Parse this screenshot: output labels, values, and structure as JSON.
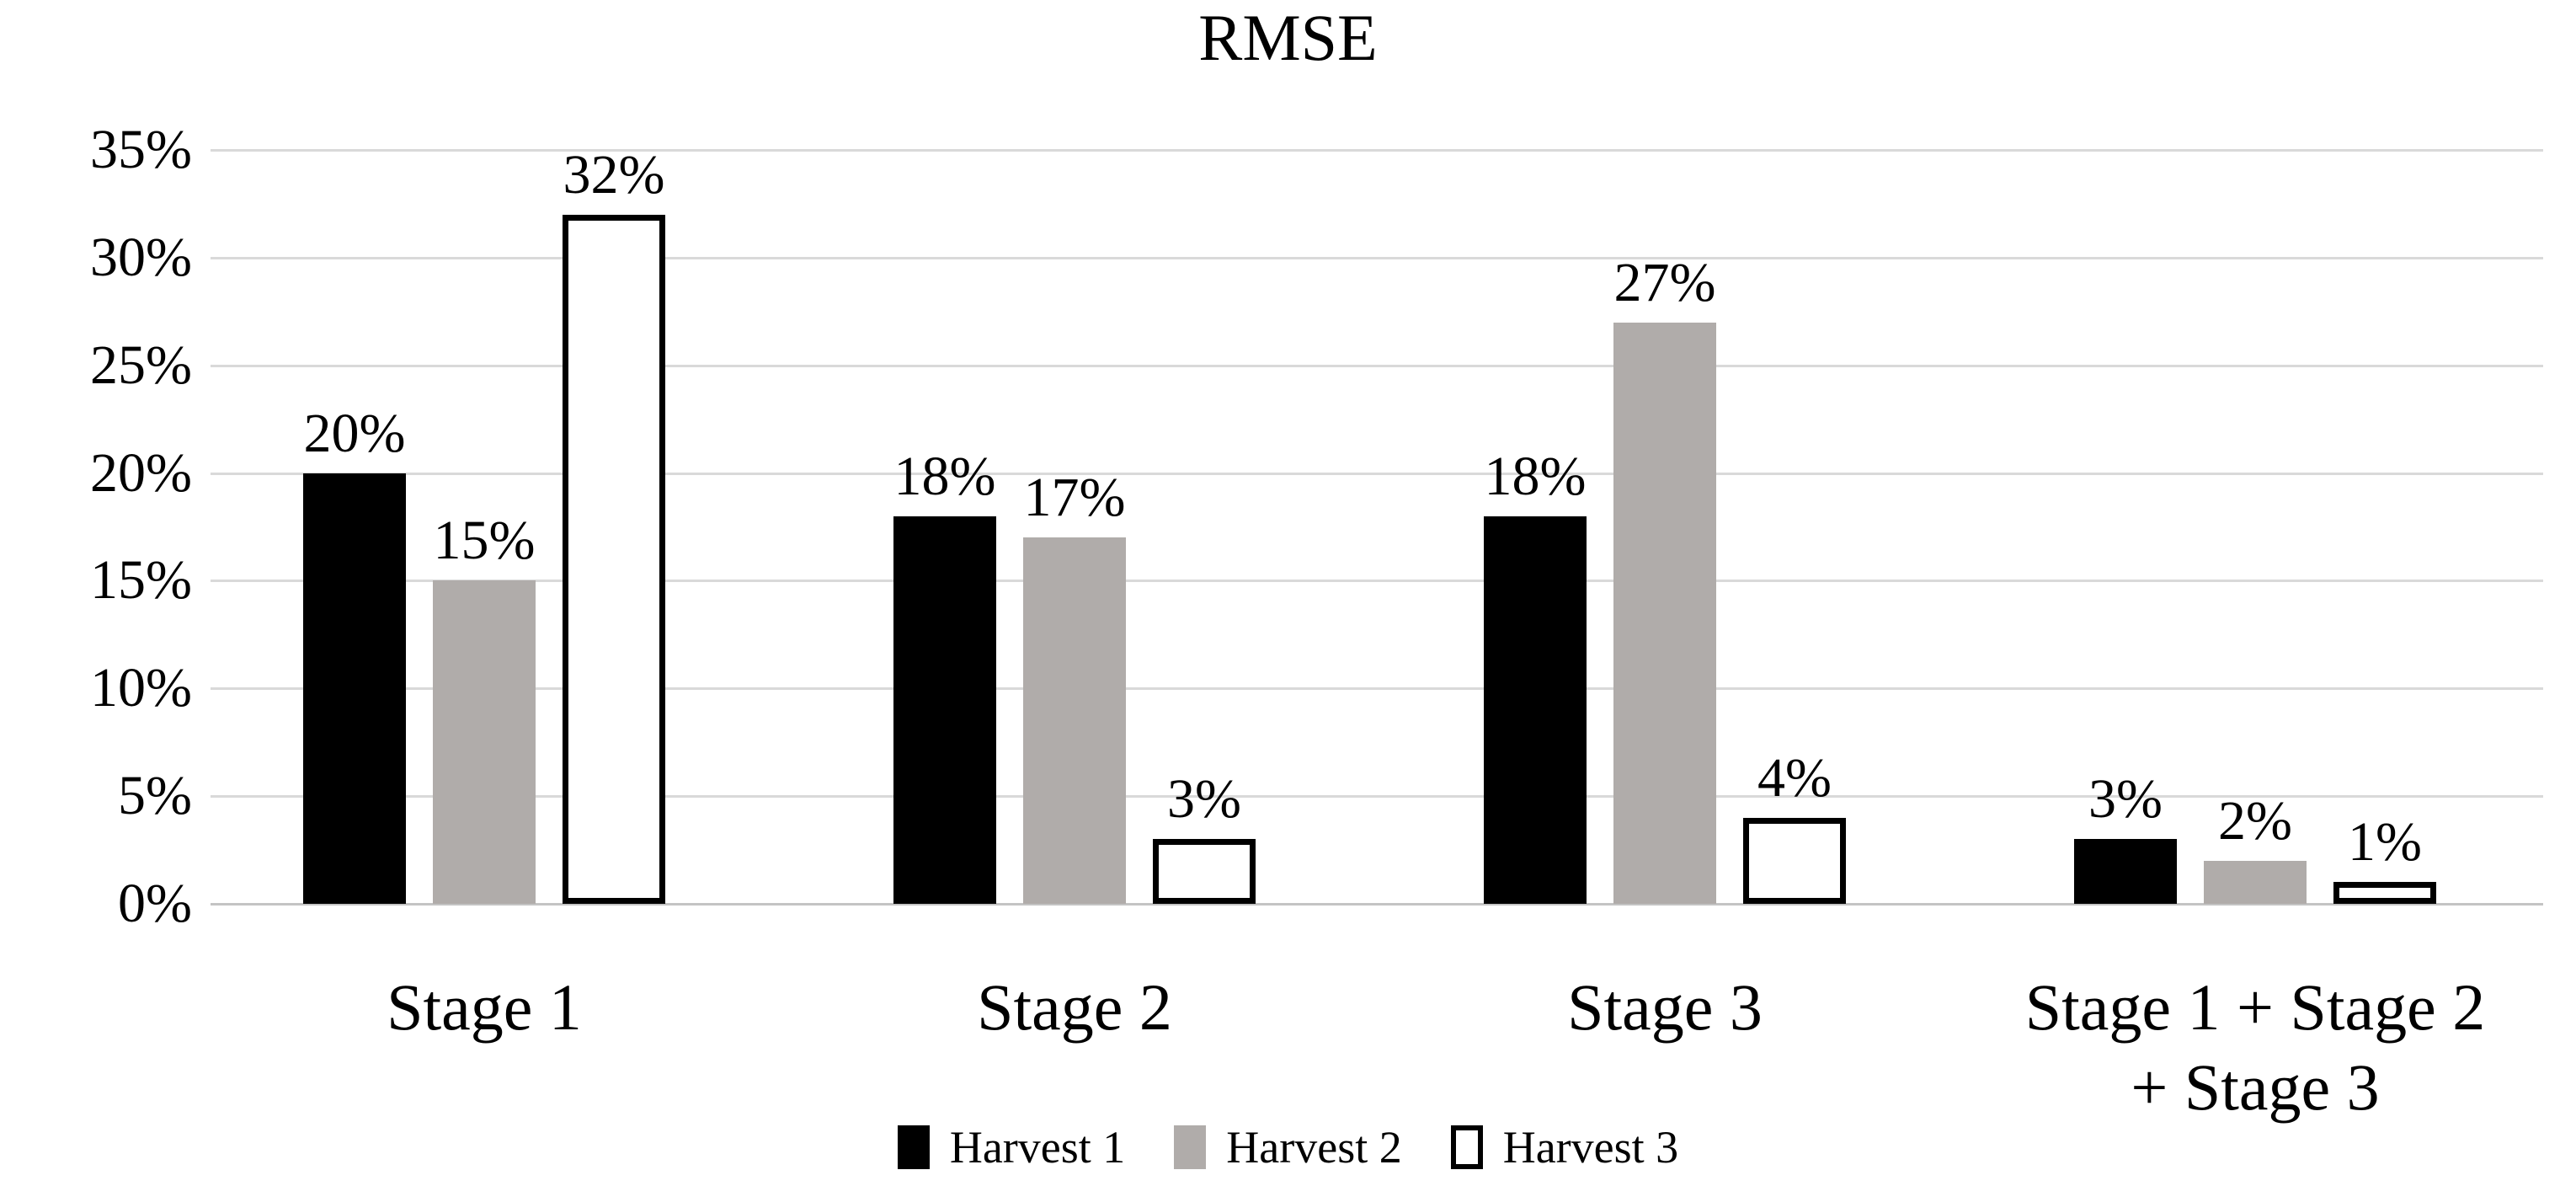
{
  "chart_data": {
    "type": "bar",
    "title": "RMSE",
    "xlabel": "",
    "ylabel": "",
    "ylim": [
      0,
      35
    ],
    "grid": true,
    "legend_position": "bottom",
    "categories": [
      "Stage 1",
      "Stage 2",
      "Stage 3",
      "Stage 1 + Stage 2 + Stage 3"
    ],
    "category_labels": [
      "Stage 1",
      "Stage 2",
      "Stage 3",
      "Stage 1 + Stage 2\n+ Stage 3"
    ],
    "ytick_values": [
      0,
      5,
      10,
      15,
      20,
      25,
      30,
      35
    ],
    "ytick_labels": [
      "0%",
      "5%",
      "10%",
      "15%",
      "20%",
      "25%",
      "30%",
      "35%"
    ],
    "series": [
      {
        "name": "Harvest 1",
        "color": "#000000",
        "border": null,
        "values": [
          20,
          18,
          18,
          3
        ],
        "value_labels": [
          "20%",
          "18%",
          "18%",
          "3%"
        ]
      },
      {
        "name": "Harvest 2",
        "color": "#b0acaa",
        "border": null,
        "values": [
          15,
          17,
          27,
          2
        ],
        "value_labels": [
          "15%",
          "17%",
          "27%",
          "2%"
        ]
      },
      {
        "name": "Harvest 3",
        "color": "#ffffff",
        "border": "#000000",
        "values": [
          32,
          3,
          4,
          1
        ],
        "value_labels": [
          "32%",
          "3%",
          "4%",
          "1%"
        ]
      }
    ],
    "colors": {
      "gridline": "#d9d9d9",
      "baseline": "#c4c4c4",
      "text": "#000000",
      "background": "#ffffff"
    }
  }
}
